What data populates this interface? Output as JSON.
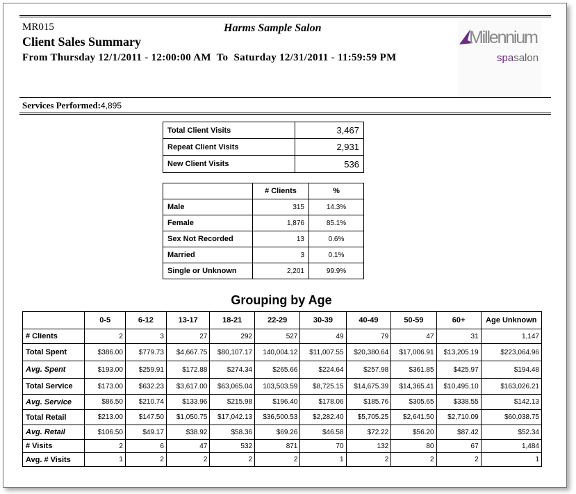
{
  "header": {
    "report_id": "MR015",
    "salon_name": "Harms Sample Salon",
    "title": "Client Sales Summary",
    "date_range": "From Thursday 12/1/2011 - 12:00:00 AM  To  Saturday 12/31/2011 - 11:59:59 PM",
    "logo_text": "Millennium spasalon",
    "logo_color": "#6b2c85"
  },
  "services": {
    "label": "Services Performed:",
    "value": "4,895"
  },
  "visits": [
    {
      "label": "Total Client Visits",
      "value": "3,467"
    },
    {
      "label": "Repeat Client Visits",
      "value": "2,931"
    },
    {
      "label": "New Client Visits",
      "value": "536"
    }
  ],
  "demographics": {
    "headers": [
      "# Clients",
      "%"
    ],
    "rows": [
      {
        "label": "Male",
        "clients": "315",
        "pct": "14.3%"
      },
      {
        "label": "Female",
        "clients": "1,876",
        "pct": "85.1%"
      },
      {
        "label": "Sex Not Recorded",
        "clients": "13",
        "pct": "0.6%"
      },
      {
        "label": "Married",
        "clients": "3",
        "pct": "0.1%"
      },
      {
        "label": "Single or Unknown",
        "clients": "2,201",
        "pct": "99.9%"
      }
    ]
  },
  "age": {
    "title": "Grouping by Age",
    "columns": [
      "0-5",
      "6-12",
      "13-17",
      "18-21",
      "22-29",
      "30-39",
      "40-49",
      "50-59",
      "60+",
      "Age Unknown"
    ],
    "rows": [
      {
        "label": "# Clients",
        "italic": false,
        "values": [
          "2",
          "3",
          "27",
          "292",
          "527",
          "49",
          "79",
          "47",
          "31",
          "1,147"
        ]
      },
      {
        "label": "Total Spent",
        "italic": false,
        "values": [
          "$386.00",
          "$779.73",
          "$4,667.75",
          "$80,107.17",
          "140,004.12",
          "$11,007.55",
          "$20,380.64",
          "$17,006.91",
          "$13,205.19",
          "$223,064.96"
        ]
      },
      {
        "label": "Avg. Spent",
        "italic": true,
        "values": [
          "$193.00",
          "$259.91",
          "$172.88",
          "$274.34",
          "$265.66",
          "$224.64",
          "$257.98",
          "$361.85",
          "$425.97",
          "$194.48"
        ]
      },
      {
        "label": "Total Service",
        "italic": false,
        "values": [
          "$173.00",
          "$632.23",
          "$3,617.00",
          "$63,065.04",
          "103,503.59",
          "$8,725.15",
          "$14,675.39",
          "$14,365.41",
          "$10,495.10",
          "$163,026.21"
        ]
      },
      {
        "label": "Avg. Service",
        "italic": true,
        "values": [
          "$86.50",
          "$210.74",
          "$133.96",
          "$215.98",
          "$196.40",
          "$178.06",
          "$185.76",
          "$305.65",
          "$338.55",
          "$142.13"
        ]
      },
      {
        "label": "Total Retail",
        "italic": false,
        "values": [
          "$213.00",
          "$147.50",
          "$1,050.75",
          "$17,042.13",
          "$36,500.53",
          "$2,282.40",
          "$5,705.25",
          "$2,641.50",
          "$2,710.09",
          "$60,038.75"
        ]
      },
      {
        "label": "Avg. Retail",
        "italic": true,
        "values": [
          "$106.50",
          "$49.17",
          "$38.92",
          "$58.36",
          "$69.26",
          "$46.58",
          "$72.22",
          "$56.20",
          "$87.42",
          "$52.34"
        ]
      },
      {
        "label": "# Visits",
        "italic": false,
        "values": [
          "2",
          "6",
          "47",
          "532",
          "871",
          "70",
          "132",
          "80",
          "67",
          "1,484"
        ]
      },
      {
        "label": "Avg. # Visits",
        "italic": false,
        "values": [
          "1",
          "2",
          "2",
          "2",
          "2",
          "1",
          "2",
          "2",
          "2",
          "1"
        ]
      }
    ]
  }
}
